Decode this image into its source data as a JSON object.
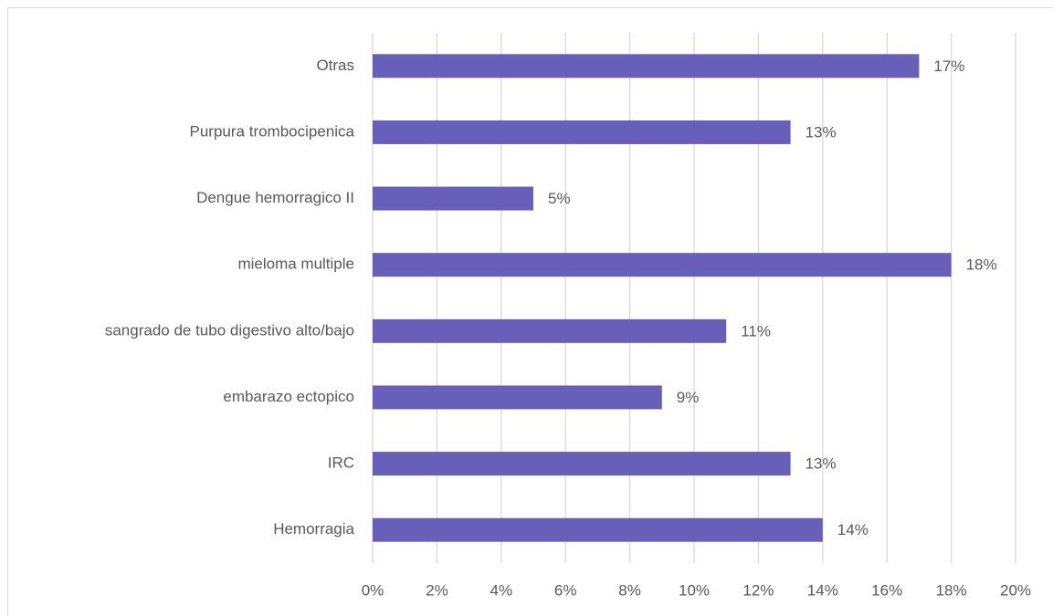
{
  "chart_data": {
    "type": "barh",
    "categories": [
      "Otras",
      "Purpura trombocipenica",
      "Dengue hemorragico II",
      "mieloma multiple",
      "sangrado de tubo digestivo alto/bajo",
      "embarazo ectopico",
      "IRC",
      "Hemorragia"
    ],
    "values": [
      17,
      13,
      5,
      18,
      11,
      9,
      13,
      14
    ],
    "value_labels": [
      "17%",
      "13%",
      "5%",
      "18%",
      "11%",
      "9%",
      "13%",
      "14%"
    ],
    "color": "#675fba",
    "xlim": [
      0,
      20
    ],
    "xticks": [
      {
        "value": 0,
        "label": "0%"
      },
      {
        "value": 2,
        "label": "2%"
      },
      {
        "value": 4,
        "label": "4%"
      },
      {
        "value": 6,
        "label": "6%"
      },
      {
        "value": 8,
        "label": "8%"
      },
      {
        "value": 10,
        "label": "10%"
      },
      {
        "value": 12,
        "label": "12%"
      },
      {
        "value": 14,
        "label": "14%"
      },
      {
        "value": 16,
        "label": "16%"
      },
      {
        "value": 18,
        "label": "18%"
      },
      {
        "value": 20,
        "label": "20%"
      }
    ],
    "grid": true
  }
}
